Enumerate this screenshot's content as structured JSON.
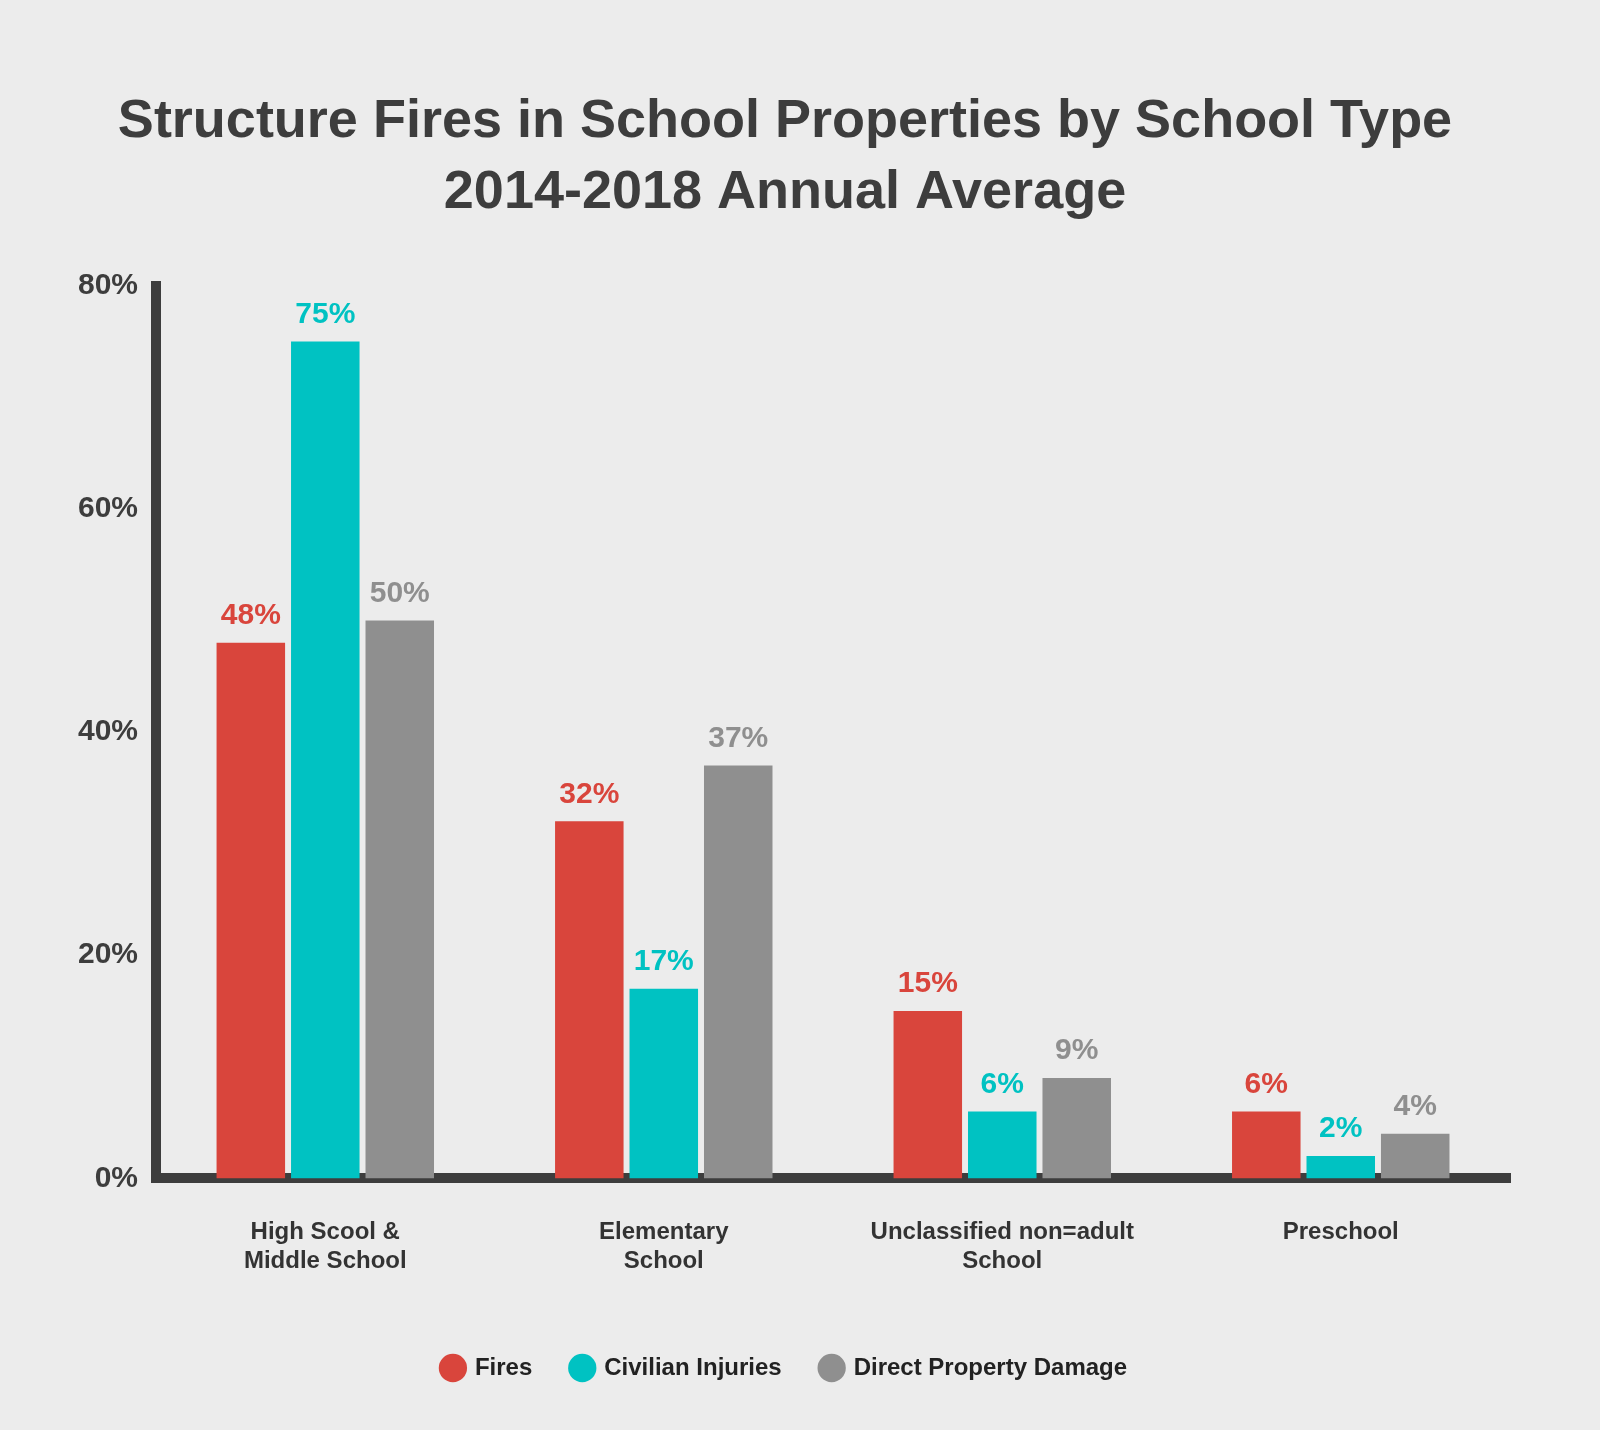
{
  "chart_data": {
    "type": "bar",
    "title": "Structure Fires in School Properties by School Type",
    "subtitle": "2014-2018 Annual Average",
    "categories": [
      [
        "High Scool &",
        "Middle School"
      ],
      [
        "Elementary",
        "School"
      ],
      [
        "Unclassified non=adult",
        "School"
      ],
      [
        "Preschool"
      ]
    ],
    "series": [
      {
        "name": "Fires",
        "color": "#d9453c",
        "values": [
          48,
          32,
          15,
          6
        ],
        "value_labels": [
          "48%",
          "32%",
          "15%",
          "6%"
        ]
      },
      {
        "name": "Civilian Injuries",
        "color": "#00c2c2",
        "values": [
          75,
          17,
          6,
          2
        ],
        "value_labels": [
          "75%",
          "17%",
          "6%",
          "2%"
        ]
      },
      {
        "name": "Direct Property Damage",
        "color": "#8f8f8f",
        "values": [
          50,
          37,
          9,
          4
        ],
        "value_labels": [
          "50%",
          "37%",
          "9%",
          "4%"
        ]
      }
    ],
    "ylim": [
      0,
      80
    ],
    "yticks": [
      {
        "value": 0,
        "label": "0%"
      },
      {
        "value": 20,
        "label": "20%"
      },
      {
        "value": 40,
        "label": "40%"
      },
      {
        "value": 60,
        "label": "60%"
      },
      {
        "value": 80,
        "label": "80%"
      }
    ],
    "grid": false,
    "legend": "bottom",
    "data_labels": true
  }
}
